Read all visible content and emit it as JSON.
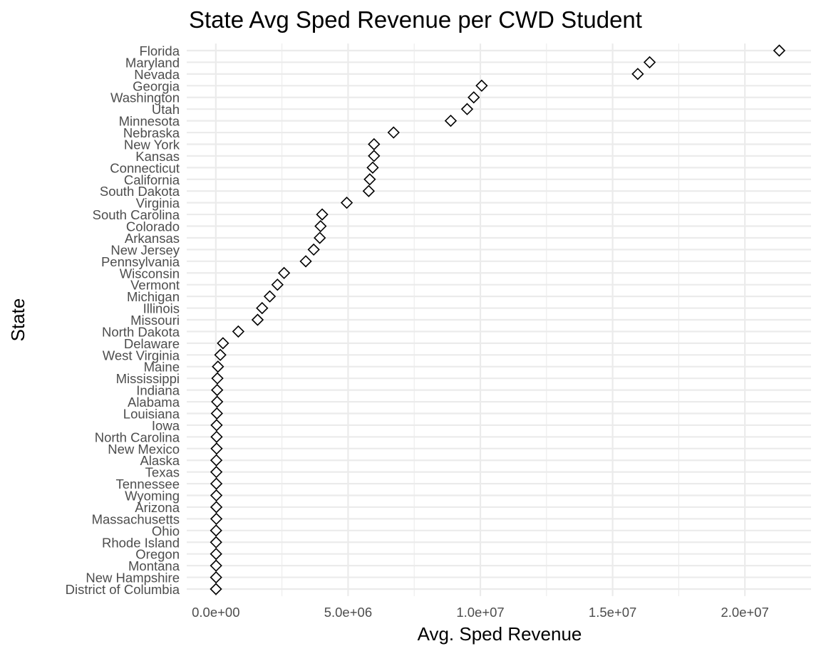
{
  "chart_data": {
    "type": "scatter",
    "title": "State Avg Sped Revenue per CWD Student",
    "xlabel": "Avg. Sped Revenue",
    "ylabel": "State",
    "xlim": [
      -1100000,
      22500000
    ],
    "x_ticks": [
      0,
      5000000,
      10000000,
      15000000,
      20000000
    ],
    "x_tick_labels": [
      "0.0e+00",
      "5.0e+06",
      "1.0e+07",
      "1.5e+07",
      "2.0e+07"
    ],
    "x_minor_ticks": [
      2500000,
      7500000,
      12500000,
      17500000
    ],
    "grid": true,
    "legend": "none",
    "marker": "open-diamond",
    "categories": [
      "Florida",
      "Maryland",
      "Nevada",
      "Georgia",
      "Washington",
      "Utah",
      "Minnesota",
      "Nebraska",
      "New York",
      "Kansas",
      "Connecticut",
      "California",
      "South Dakota",
      "Virginia",
      "South Carolina",
      "Colorado",
      "Arkansas",
      "New Jersey",
      "Pennsylvania",
      "Wisconsin",
      "Vermont",
      "Michigan",
      "Illinois",
      "Missouri",
      "North Dakota",
      "Delaware",
      "West Virginia",
      "Maine",
      "Mississippi",
      "Indiana",
      "Alabama",
      "Louisiana",
      "Iowa",
      "North Carolina",
      "New Mexico",
      "Alaska",
      "Texas",
      "Tennessee",
      "Wyoming",
      "Arizona",
      "Massachusetts",
      "Ohio",
      "Rhode Island",
      "Oregon",
      "Montana",
      "New Hampshire",
      "District of Columbia"
    ],
    "values": [
      21300000,
      16400000,
      15950000,
      10050000,
      9750000,
      9500000,
      8880000,
      6720000,
      5980000,
      5980000,
      5930000,
      5820000,
      5780000,
      4950000,
      4020000,
      3960000,
      3930000,
      3700000,
      3400000,
      2580000,
      2330000,
      2040000,
      1750000,
      1580000,
      850000,
      270000,
      170000,
      80000,
      60000,
      50000,
      50000,
      40000,
      30000,
      30000,
      30000,
      20000,
      20000,
      20000,
      20000,
      20000,
      20000,
      10000,
      10000,
      10000,
      10000,
      10000,
      5000
    ]
  }
}
